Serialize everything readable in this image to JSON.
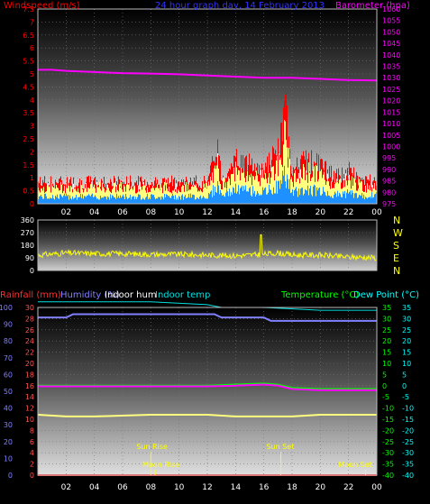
{
  "colors": {
    "wind": "#ff0000",
    "gust": "#ffff80",
    "avg": "#1e90ff",
    "baro": "#ff00ff",
    "dir": "#ffff00",
    "rain": "#ff3030",
    "humidity": "#8080ff",
    "indoorhum": "#ffffff",
    "indoortemp": "#00e0e0",
    "temp": "#00ff00",
    "dew": "#00ffff"
  },
  "chart_data": [
    {
      "type": "line",
      "title": "24 hour graph day, 14 February 2013",
      "ylabel_left": "Windspeed (m/s)",
      "ylabel_right": "Barometer (hpa)",
      "x_ticks": [
        "02",
        "04",
        "06",
        "08",
        "10",
        "12",
        "14",
        "16",
        "18",
        "20",
        "22",
        "00"
      ],
      "y_left_ticks": [
        "0",
        "0.5",
        "1",
        "1.5",
        "2",
        "2.5",
        "3",
        "3.5",
        "4",
        "4.5",
        "5",
        "5.5",
        "6",
        "6.5",
        "7",
        "7.5"
      ],
      "y_right_ticks": [
        "975",
        "980",
        "985",
        "990",
        "995",
        "1000",
        "1005",
        "1010",
        "1015",
        "1020",
        "1025",
        "1030",
        "1035",
        "1040",
        "1045",
        "1050",
        "1055",
        "1060"
      ],
      "ylim_left": [
        0,
        7.5
      ],
      "ylim_right": [
        975,
        1060
      ],
      "series": [
        {
          "name": "Windspeed (m/s)",
          "x": [
            0,
            2,
            4,
            6,
            8,
            10,
            12,
            12.7,
            13,
            14,
            15,
            16,
            17,
            17.5,
            18,
            19,
            20,
            21,
            22,
            23,
            24
          ],
          "y": [
            1.0,
            1.0,
            1.0,
            1.0,
            1.0,
            1.0,
            1.0,
            2.5,
            1.2,
            2.0,
            1.8,
            1.6,
            2.4,
            4.2,
            1.5,
            2.0,
            1.8,
            1.2,
            1.5,
            1.0,
            1.2
          ]
        },
        {
          "name": "Barometer (hpa)",
          "x": [
            0,
            1,
            2,
            4,
            6,
            8,
            10,
            12,
            14,
            16,
            18,
            20,
            22,
            24
          ],
          "y": [
            1033.5,
            1033.5,
            1033,
            1032.5,
            1032,
            1031.8,
            1031.5,
            1031,
            1030.5,
            1030,
            1030,
            1029.5,
            1029,
            1028.8
          ]
        }
      ]
    },
    {
      "type": "line",
      "ylabel_right_ticks": [
        "N",
        "W",
        "S",
        "E",
        "N"
      ],
      "y_ticks": [
        "0",
        "90",
        "180",
        "270",
        "360"
      ],
      "ylim": [
        0,
        360
      ],
      "x_ticks": [
        "02",
        "04",
        "06",
        "08",
        "10",
        "12",
        "14",
        "16",
        "18",
        "20",
        "22",
        "00"
      ],
      "series": [
        {
          "name": "Wind direction",
          "x": [
            0,
            2,
            4,
            6,
            8,
            10,
            12,
            14,
            16,
            17,
            18,
            20,
            22,
            23,
            24
          ],
          "y": [
            110,
            125,
            120,
            120,
            115,
            115,
            110,
            105,
            115,
            125,
            110,
            110,
            95,
            95,
            90
          ]
        }
      ]
    },
    {
      "type": "line",
      "ylabel_left": "Rainfall (mm)",
      "legend_entries": [
        "Humidity (%)",
        "Indoor hum",
        "Indoor temp",
        "Temperature (°C)",
        "Dew Point (°C)"
      ],
      "x_ticks": [
        "02",
        "04",
        "06",
        "08",
        "10",
        "12",
        "14",
        "16",
        "18",
        "20",
        "22",
        "00"
      ],
      "y_rain_ticks": [
        "0",
        "10",
        "20",
        "30",
        "40",
        "50",
        "60",
        "70",
        "80",
        "90",
        "100"
      ],
      "y_hum_ticks": [
        "0",
        "2",
        "4",
        "6",
        "8",
        "10",
        "12",
        "14",
        "16",
        "18",
        "20",
        "22",
        "24",
        "26",
        "28",
        "30"
      ],
      "y_temp_ticks": [
        "35",
        "30",
        "25",
        "20",
        "15",
        "10",
        "5",
        "0",
        "-5",
        "-10",
        "-15",
        "-20",
        "-25",
        "-30",
        "-35",
        "-40"
      ],
      "ylim_rain": [
        0,
        100
      ],
      "ylim_temp": [
        -40,
        35
      ],
      "annotations": [
        "Sun Rise",
        "Moon Rise",
        "Sun Set",
        "Moon Set"
      ],
      "series": [
        {
          "name": "Humidity (%)",
          "x": [
            0,
            2,
            2.5,
            12.5,
            13,
            16,
            16.5,
            24
          ],
          "y": [
            94,
            94,
            96,
            96,
            94,
            94,
            92,
            92
          ]
        },
        {
          "name": "Indoor temp",
          "x": [
            0,
            4,
            8,
            12,
            13,
            16,
            20,
            24
          ],
          "y": [
            31,
            31,
            31,
            30.5,
            30,
            30,
            29.5,
            29.5
          ]
        },
        {
          "name": "Temperature (°C)",
          "x": [
            0,
            4,
            8,
            10,
            12,
            14,
            16,
            17,
            18,
            20,
            22,
            24
          ],
          "y": [
            0,
            0,
            0,
            0,
            0,
            0.5,
            1,
            0.5,
            -1,
            -1.5,
            -1.5,
            -1.5
          ]
        },
        {
          "name": "Dew Point (°C)",
          "x": [
            0,
            4,
            8,
            10,
            12,
            14,
            16,
            17,
            18,
            20,
            22,
            24
          ],
          "y": [
            -0.3,
            -0.3,
            -0.3,
            -0.3,
            -0.3,
            0,
            0.5,
            0,
            -1.5,
            -2,
            -2,
            -2
          ]
        },
        {
          "name": "Indoor hum",
          "x": [
            0,
            2,
            4,
            8,
            12,
            14,
            16,
            18,
            20,
            22,
            24
          ],
          "y": [
            36,
            35,
            35,
            36,
            36,
            35,
            35,
            35,
            36,
            36,
            36
          ]
        },
        {
          "name": "Rainfall (mm)",
          "x": [
            0,
            24
          ],
          "y": [
            0,
            0
          ]
        }
      ]
    }
  ]
}
